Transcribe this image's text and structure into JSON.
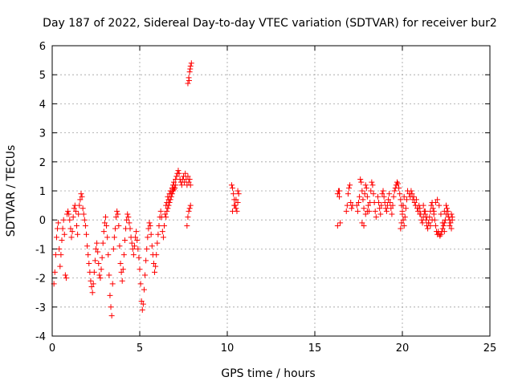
{
  "chart_data": {
    "type": "scatter",
    "title": "Day 187 of 2022, Sidereal Day-to-day VTEC variation (SDTVAR) for receiver bur2",
    "xlabel": "GPS time / hours",
    "ylabel": "SDTVAR / TECUs",
    "xlim": [
      0,
      25
    ],
    "ylim": [
      -4,
      6
    ],
    "xticks": [
      0,
      5,
      10,
      15,
      20,
      25
    ],
    "yticks": [
      -4,
      -3,
      -2,
      -1,
      0,
      1,
      2,
      3,
      4,
      5,
      6
    ],
    "grid": true,
    "marker": "+",
    "color": "#ff0000",
    "series": [
      {
        "name": "SDTVAR",
        "segments": [
          {
            "x": [
              0.1,
              0.15,
              0.2,
              0.25,
              0.3,
              0.35,
              0.4,
              0.45,
              0.5,
              0.55,
              0.6,
              0.65,
              0.7,
              0.75,
              0.8
            ],
            "y": [
              -2.2,
              -1.8,
              -1.2,
              -0.6,
              -0.3,
              -0.1,
              -1.0,
              -1.6,
              -1.2,
              -0.7,
              -0.3,
              0.0,
              -0.5,
              -1.9,
              -2.0
            ]
          },
          {
            "x": [
              0.85,
              0.9,
              0.95,
              1.0,
              1.05,
              1.1,
              1.15,
              1.2,
              1.25,
              1.3,
              1.35,
              1.4,
              1.45,
              1.5,
              1.55,
              1.6,
              1.65,
              1.7,
              1.75,
              1.8
            ],
            "y": [
              0.2,
              0.3,
              0.2,
              0.0,
              -0.3,
              -0.6,
              -0.4,
              0.1,
              0.4,
              0.5,
              0.3,
              -0.2,
              -0.5,
              0.2,
              0.5,
              0.7,
              0.9,
              0.8,
              0.4,
              0.2
            ]
          },
          {
            "x": [
              1.85,
              1.9,
              1.95,
              2.0,
              2.05,
              2.1,
              2.15,
              2.2,
              2.25,
              2.3,
              2.35,
              2.4,
              2.45,
              2.5,
              2.55,
              2.6,
              2.65,
              2.7,
              2.75,
              2.8
            ],
            "y": [
              0.0,
              -0.2,
              -0.5,
              -0.9,
              -1.2,
              -1.5,
              -1.8,
              -2.1,
              -2.3,
              -2.5,
              -2.2,
              -1.8,
              -1.4,
              -1.0,
              -0.8,
              -1.1,
              -1.5,
              -1.9,
              -2.0,
              -1.7
            ]
          },
          {
            "x": [
              2.85,
              2.9,
              2.95,
              3.0,
              3.05,
              3.1,
              3.15,
              3.2,
              3.25,
              3.3,
              3.35,
              3.4,
              3.45,
              3.5
            ],
            "y": [
              -1.3,
              -0.8,
              -0.4,
              -0.1,
              0.1,
              -0.2,
              -0.6,
              -1.2,
              -1.9,
              -2.6,
              -3.0,
              -3.3,
              -2.2,
              -1.0
            ]
          },
          {
            "x": [
              3.55,
              3.6,
              3.65,
              3.7,
              3.75,
              3.8,
              3.85,
              3.9,
              3.95,
              4.0,
              4.05,
              4.1,
              4.15,
              4.2
            ],
            "y": [
              -0.6,
              -0.3,
              0.1,
              0.3,
              0.2,
              -0.2,
              -0.9,
              -1.5,
              -1.8,
              -2.1,
              -1.7,
              -1.2,
              -0.7,
              -0.3
            ]
          },
          {
            "x": [
              4.25,
              4.3,
              4.35,
              4.4,
              4.45,
              4.5,
              4.55,
              4.6,
              4.65,
              4.7,
              4.75,
              4.8,
              4.85,
              4.9,
              4.95,
              5.0,
              5.05,
              5.1,
              5.15,
              5.2,
              5.25,
              5.3
            ],
            "y": [
              0.0,
              0.2,
              0.1,
              -0.1,
              -0.3,
              -0.6,
              -0.8,
              -1.0,
              -1.2,
              -0.9,
              -0.6,
              -0.4,
              -0.7,
              -1.0,
              -1.3,
              -1.7,
              -2.2,
              -2.8,
              -3.1,
              -2.9,
              -2.4,
              -1.9
            ]
          },
          {
            "x": [
              5.35,
              5.4,
              5.45,
              5.5,
              5.55,
              5.6,
              5.65,
              5.7,
              5.75,
              5.8,
              5.85,
              5.9,
              5.95,
              6.0,
              6.05,
              6.1,
              6.15,
              6.2,
              6.25,
              6.3
            ],
            "y": [
              -1.4,
              -1.0,
              -0.6,
              -0.3,
              -0.1,
              -0.2,
              -0.5,
              -0.9,
              -1.2,
              -1.5,
              -1.8,
              -1.6,
              -1.2,
              -0.8,
              -0.5,
              -0.2,
              0.1,
              0.3,
              0.1,
              -0.4
            ]
          },
          {
            "x": [
              6.35,
              6.4,
              6.45,
              6.5,
              6.55,
              6.6,
              6.65,
              6.7,
              6.75,
              6.8,
              6.85,
              6.9,
              6.95,
              7.0,
              7.05,
              7.1,
              7.15,
              7.2,
              7.25,
              7.3
            ],
            "y": [
              -0.6,
              -0.2,
              0.2,
              0.5,
              0.6,
              0.8,
              0.7,
              0.9,
              1.0,
              0.9,
              1.1,
              1.2,
              1.3,
              1.1,
              1.4,
              1.5,
              1.6,
              1.7,
              1.6,
              1.4
            ]
          },
          {
            "x": [
              7.35,
              7.4,
              7.45,
              7.5,
              7.55,
              7.6,
              7.65,
              7.7,
              7.75,
              7.8,
              7.85,
              7.9
            ],
            "y": [
              1.3,
              1.2,
              1.4,
              1.5,
              1.3,
              1.6,
              1.4,
              1.2,
              1.5,
              1.3,
              1.4,
              1.2
            ]
          },
          {
            "x": [
              6.5,
              6.55,
              6.6,
              6.65,
              6.7,
              6.75,
              6.8,
              6.85,
              6.9,
              6.95,
              7.0,
              7.05
            ],
            "y": [
              0.1,
              0.3,
              0.4,
              0.5,
              0.6,
              0.7,
              0.8,
              0.9,
              1.0,
              1.05,
              1.1,
              1.2
            ]
          },
          {
            "x": [
              7.7,
              7.75,
              7.8,
              7.85,
              7.9
            ],
            "y": [
              -0.2,
              0.1,
              0.3,
              0.4,
              0.5
            ]
          },
          {
            "x": [
              7.75,
              7.8,
              7.85,
              7.9,
              7.95,
              7.82,
              7.88
            ],
            "y": [
              4.7,
              4.9,
              5.1,
              5.3,
              5.4,
              4.8,
              5.2
            ]
          },
          {
            "x": [
              10.25,
              10.3,
              10.35,
              10.4,
              10.45,
              10.5,
              10.55,
              10.6,
              10.65,
              10.3,
              10.4,
              10.5,
              10.6
            ],
            "y": [
              1.2,
              1.1,
              0.9,
              0.7,
              0.5,
              0.4,
              0.3,
              0.6,
              0.9,
              0.3,
              0.5,
              0.7,
              1.0
            ]
          },
          {
            "x": [
              16.3,
              16.35,
              16.4,
              16.45,
              16.3,
              16.4
            ],
            "y": [
              0.9,
              1.0,
              0.8,
              -0.1,
              -0.2,
              1.0
            ]
          },
          {
            "x": [
              16.8,
              16.85,
              16.9,
              16.95,
              17.0,
              17.05,
              17.1,
              17.15
            ],
            "y": [
              0.3,
              0.5,
              0.9,
              1.1,
              1.2,
              0.6,
              0.4,
              0.5
            ]
          },
          {
            "x": [
              17.4,
              17.45,
              17.5,
              17.55,
              17.6,
              17.65,
              17.7,
              17.75,
              17.8,
              17.85,
              17.9,
              17.95,
              18.0,
              18.05,
              18.1,
              18.15,
              18.2,
              18.25,
              18.3,
              18.35,
              18.4,
              18.45,
              18.5
            ],
            "y": [
              0.5,
              0.3,
              0.6,
              0.8,
              1.4,
              1.3,
              1.0,
              0.7,
              0.4,
              0.9,
              1.2,
              1.1,
              0.8,
              0.5,
              0.3,
              0.6,
              1.0,
              1.3,
              1.2,
              0.9,
              0.6,
              0.3,
              0.1
            ]
          },
          {
            "x": [
              17.7,
              17.8,
              17.9,
              18.0
            ],
            "y": [
              -0.1,
              -0.2,
              0.2,
              0.3
            ]
          },
          {
            "x": [
              18.6,
              18.65,
              18.7,
              18.75,
              18.8,
              18.85,
              18.9,
              18.95,
              19.0,
              19.05,
              19.1,
              19.15,
              19.2,
              19.25,
              19.3,
              19.35,
              19.4,
              19.45,
              19.5,
              19.55
            ],
            "y": [
              0.8,
              0.6,
              0.4,
              0.2,
              0.5,
              0.9,
              1.0,
              0.8,
              0.6,
              0.4,
              0.3,
              0.5,
              0.7,
              0.9,
              0.6,
              0.4,
              0.2,
              0.5,
              0.8,
              1.0
            ]
          },
          {
            "x": [
              19.6,
              19.65,
              19.7,
              19.75,
              19.8,
              19.85,
              19.9,
              19.95,
              20.0,
              20.05,
              20.1,
              20.15,
              20.2,
              20.25,
              20.3
            ],
            "y": [
              1.1,
              1.2,
              1.3,
              1.25,
              1.1,
              0.9,
              0.7,
              0.5,
              0.3,
              0.0,
              -0.2,
              0.1,
              0.4,
              0.7,
              1.0
            ]
          },
          {
            "x": [
              19.9,
              19.95,
              20.0,
              20.05,
              20.1
            ],
            "y": [
              -0.3,
              -0.1,
              0.2,
              0.5,
              0.8
            ]
          },
          {
            "x": [
              20.4,
              20.45,
              20.5,
              20.55,
              20.6,
              20.65,
              20.7,
              20.75,
              20.8,
              20.85,
              20.9,
              20.95,
              21.0
            ],
            "y": [
              0.9,
              0.8,
              1.0,
              0.9,
              0.7,
              0.8,
              0.6,
              0.5,
              0.7,
              0.4,
              0.3,
              0.5,
              0.2
            ]
          },
          {
            "x": [
              21.0,
              21.05,
              21.1,
              21.15,
              21.2,
              21.25,
              21.3,
              21.35,
              21.4,
              21.45,
              21.5,
              21.55,
              21.6,
              21.65,
              21.7,
              21.75,
              21.8,
              21.85,
              21.9,
              21.95,
              22.0
            ],
            "y": [
              0.4,
              0.2,
              0.0,
              -0.1,
              0.1,
              0.3,
              0.2,
              0.0,
              -0.2,
              -0.3,
              -0.1,
              0.1,
              0.3,
              0.5,
              0.6,
              0.4,
              0.2,
              0.0,
              -0.2,
              -0.4,
              -0.5
            ]
          },
          {
            "x": [
              21.2,
              21.3,
              21.4,
              21.5,
              21.6,
              21.7,
              21.8,
              21.9,
              22.0,
              22.1,
              22.2,
              22.3,
              22.4
            ],
            "y": [
              0.5,
              0.3,
              0.1,
              -0.1,
              -0.2,
              0.0,
              0.3,
              0.6,
              0.7,
              0.5,
              0.2,
              -0.1,
              -0.4
            ]
          },
          {
            "x": [
              22.05,
              22.1,
              22.15,
              22.2,
              22.25,
              22.3,
              22.35,
              22.4,
              22.45,
              22.5,
              22.55,
              22.6,
              22.65,
              22.7,
              22.75,
              22.8,
              22.85
            ],
            "y": [
              -0.4,
              -0.5,
              -0.55,
              -0.5,
              -0.4,
              -0.3,
              -0.2,
              -0.1,
              0.0,
              0.2,
              0.4,
              0.3,
              0.1,
              0.0,
              -0.1,
              0.2,
              0.1
            ]
          },
          {
            "x": [
              22.4,
              22.5,
              22.6,
              22.7,
              22.8,
              22.85
            ],
            "y": [
              0.3,
              0.5,
              0.2,
              -0.2,
              -0.3,
              0.0
            ]
          }
        ]
      }
    ]
  }
}
